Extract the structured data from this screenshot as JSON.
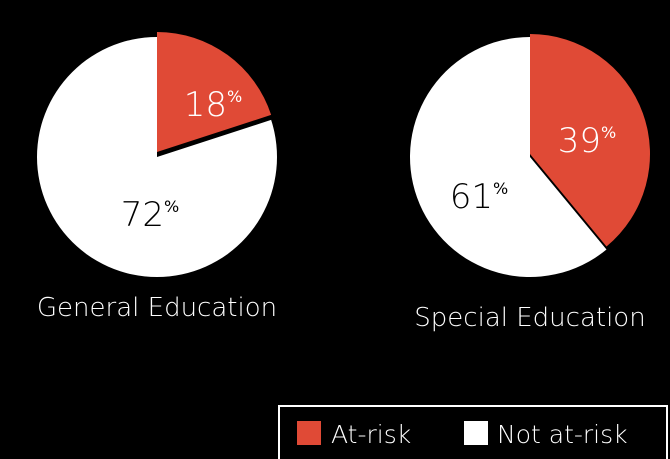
{
  "colors": {
    "at_risk": "#E04A36",
    "not_at_risk": "#FFFFFF",
    "background": "#000000",
    "legend_border": "#FFFFFF",
    "text": "#FFFFFF"
  },
  "chart_data": [
    {
      "type": "pie",
      "title": "General Education",
      "labels": [
        "At-risk",
        "Not at-risk"
      ],
      "values": [
        18,
        72
      ],
      "value_labels": [
        "18",
        "72"
      ],
      "unit": "%",
      "colors": [
        "#E04A36",
        "#FFFFFF"
      ],
      "exploded": "At-risk"
    },
    {
      "type": "pie",
      "title": "Special Education",
      "labels": [
        "At-risk",
        "Not at-risk"
      ],
      "values": [
        39,
        61
      ],
      "value_labels": [
        "39",
        "61"
      ],
      "unit": "%",
      "colors": [
        "#E04A36",
        "#FFFFFF"
      ],
      "exploded": "At-risk"
    }
  ],
  "legend": {
    "placement": "bottom-right",
    "items": [
      {
        "label": "At-risk",
        "color": "#E04A36"
      },
      {
        "label": "Not at-risk",
        "color": "#FFFFFF"
      }
    ]
  }
}
